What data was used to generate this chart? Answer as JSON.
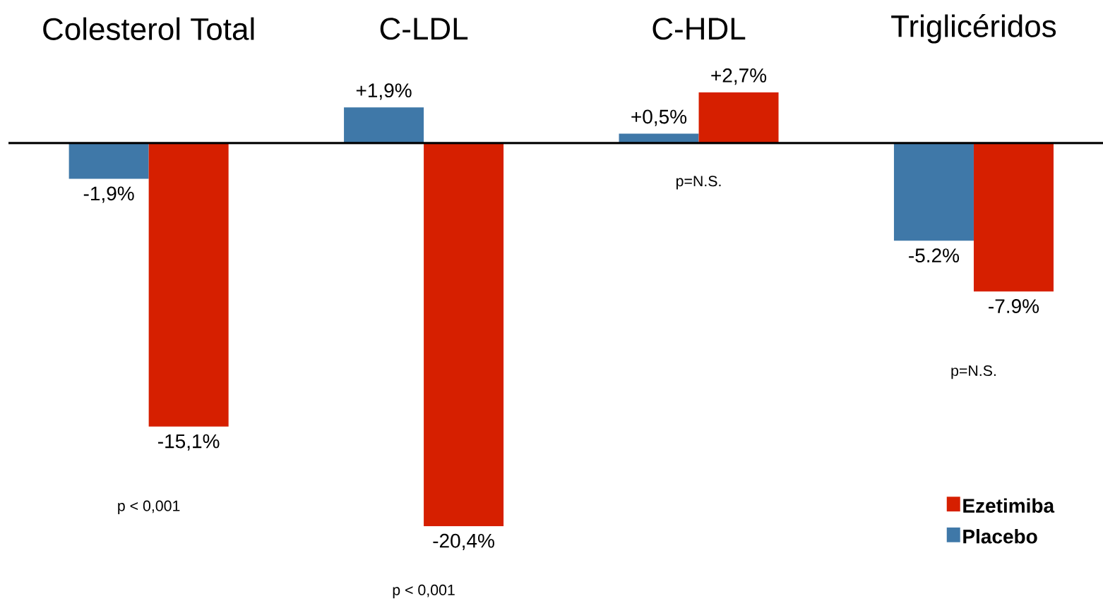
{
  "chart_data": {
    "type": "bar",
    "categories": [
      "Colesterol Total",
      "C-LDL",
      "C-HDL",
      "Triglicéridos"
    ],
    "series": [
      {
        "name": "Placebo",
        "color": "#3f78a8",
        "values": [
          -1.9,
          1.9,
          0.5,
          -5.2
        ],
        "value_labels": [
          "-1,9%",
          "+1,9%",
          "+0,5%",
          "-5.2%"
        ]
      },
      {
        "name": "Ezetimiba",
        "color": "#d61f00",
        "values": [
          -15.1,
          -20.4,
          2.7,
          -7.9
        ],
        "value_labels": [
          "-15,1%",
          "-20,4%",
          "+2,7%",
          "-7.9%"
        ]
      }
    ],
    "legend": "bottom right",
    "annotations": [
      "p < 0,001",
      "p < 0,001",
      "p=N.S.",
      "p=N.S."
    ]
  }
}
